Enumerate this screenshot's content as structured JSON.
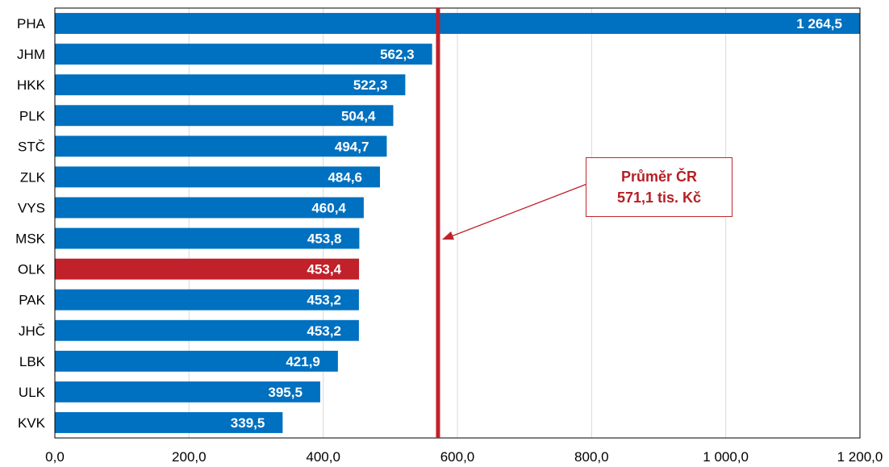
{
  "chart_data": {
    "type": "bar",
    "orientation": "horizontal",
    "categories": [
      "PHA",
      "JHM",
      "HKK",
      "PLK",
      "STČ",
      "ZLK",
      "VYS",
      "MSK",
      "OLK",
      "PAK",
      "JHČ",
      "LBK",
      "ULK",
      "KVK"
    ],
    "values": [
      1264.5,
      562.3,
      522.3,
      504.4,
      494.7,
      484.6,
      460.4,
      453.8,
      453.4,
      453.2,
      453.2,
      421.9,
      395.5,
      339.5
    ],
    "value_labels": [
      "1 264,5",
      "562,3",
      "522,3",
      "504,4",
      "494,7",
      "484,6",
      "460,4",
      "453,8",
      "453,4",
      "453,2",
      "453,2",
      "421,9",
      "395,5",
      "339,5"
    ],
    "highlight_category": "OLK",
    "xlim": [
      0,
      1200
    ],
    "xticks": [
      0,
      200,
      400,
      600,
      800,
      1000,
      1200
    ],
    "xtick_labels": [
      "0,0",
      "200,0",
      "400,0",
      "600,0",
      "800,0",
      "1 000,0",
      "1 200,0"
    ],
    "grid": "vertical",
    "reference_line": {
      "value": 571.1,
      "label_line1": "Průměr ČR",
      "label_line2": "571,1 tis. Kč"
    },
    "title": "",
    "xlabel": "",
    "ylabel": ""
  },
  "colors": {
    "bar": "#0070c0",
    "highlight_bar": "#c0212a",
    "reference_line": "#c0212a",
    "grid": "#d9d9d9",
    "axis": "#000000"
  }
}
